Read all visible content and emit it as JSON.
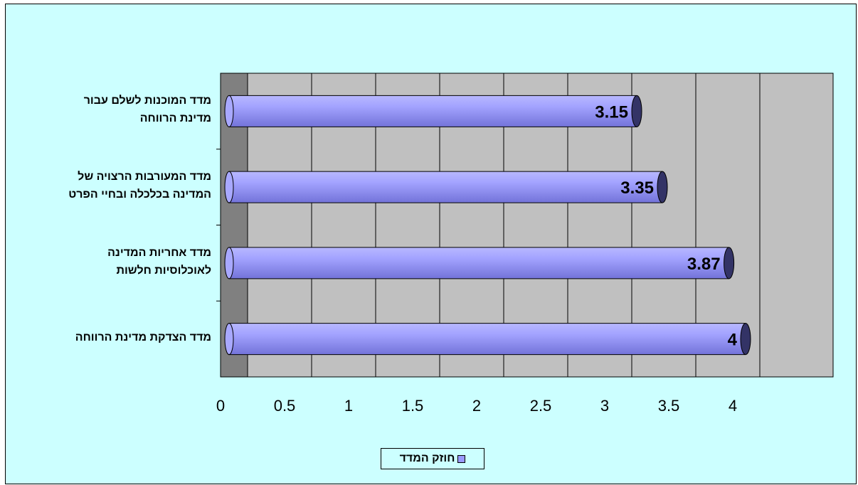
{
  "chart_data": {
    "type": "bar",
    "orientation": "horizontal",
    "categories": [
      [
        "מדד המוכנות לשלם עבור",
        "מדינת הרווחה"
      ],
      [
        "מדד המעורבות הרצויה של",
        "המדינה בכלכלה ובחיי הפרט"
      ],
      [
        "מדד אחריות המדינה",
        "לאוכלוסיות חלשות"
      ],
      [
        "מדד הצדקת מדינת הרווחה"
      ]
    ],
    "series": [
      {
        "name": "חוזק המדד",
        "values": [
          3.15,
          3.35,
          3.87,
          4
        ],
        "labels": [
          "3.15",
          "3.35",
          "3.87",
          "4"
        ]
      }
    ],
    "xticks": [
      "0",
      "0.5",
      "1",
      "1.5",
      "2",
      "2.5",
      "3",
      "3.5",
      "4"
    ],
    "xlim": [
      0,
      4
    ],
    "grid": true,
    "legend_position": "bottom",
    "colors": {
      "frame_bg": "#ccffff",
      "plot_bg": "#c0c0c0",
      "wall": "#808080",
      "bar_fill": "#9999ff",
      "bar_end": "#333366"
    }
  }
}
